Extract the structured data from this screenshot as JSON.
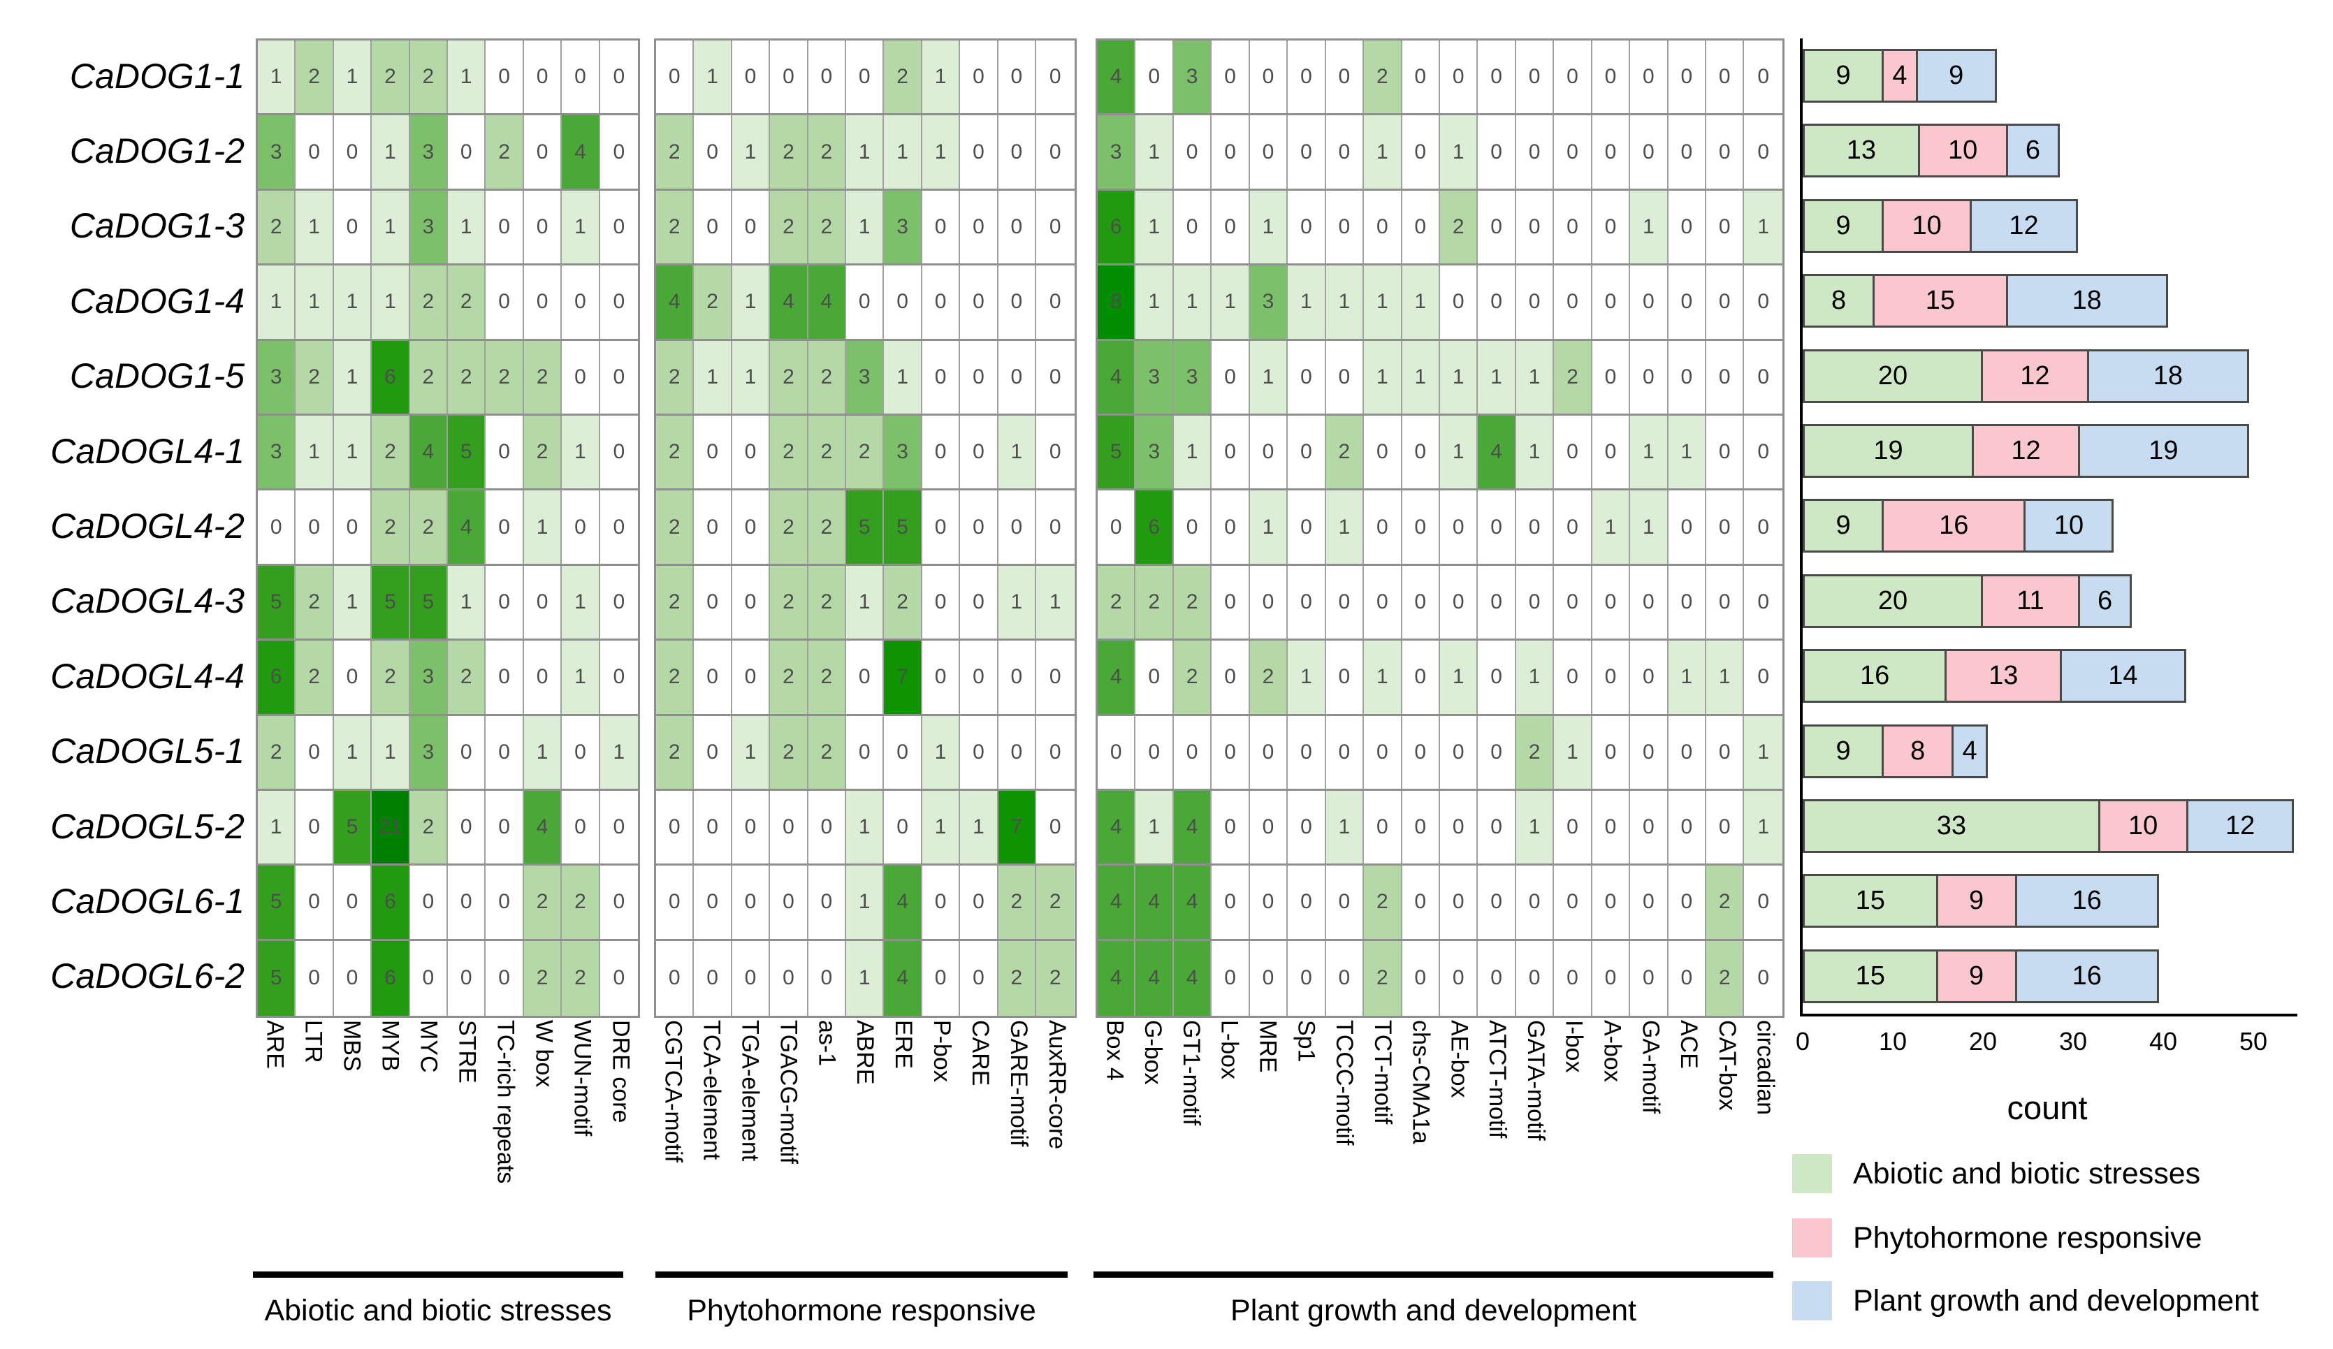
{
  "genes": [
    "CaDOG1-1",
    "CaDOG1-2",
    "CaDOG1-3",
    "CaDOG1-4",
    "CaDOG1-5",
    "CaDOGL4-1",
    "CaDOGL4-2",
    "CaDOGL4-3",
    "CaDOGL4-4",
    "CaDOGL5-1",
    "CaDOGL5-2",
    "CaDOGL6-1",
    "CaDOGL6-2"
  ],
  "heatmap": {
    "scale": {
      "zero_color": "#ffffff",
      "max_color": "#008000",
      "max_value": 21
    },
    "groups": [
      {
        "name": "Abiotic and biotic stresses",
        "columns": [
          "ARE",
          "LTR",
          "MBS",
          "MYB",
          "MYC",
          "STRE",
          "TC-rich repeats",
          "W box",
          "WUN-motif",
          "DRE core"
        ],
        "matrix": [
          [
            1,
            2,
            1,
            2,
            2,
            1,
            0,
            0,
            0,
            0
          ],
          [
            3,
            0,
            0,
            1,
            3,
            0,
            2,
            0,
            4,
            0
          ],
          [
            2,
            1,
            0,
            1,
            3,
            1,
            0,
            0,
            1,
            0
          ],
          [
            1,
            1,
            1,
            1,
            2,
            2,
            0,
            0,
            0,
            0
          ],
          [
            3,
            2,
            1,
            6,
            2,
            2,
            2,
            2,
            0,
            0
          ],
          [
            3,
            1,
            1,
            2,
            4,
            5,
            0,
            2,
            1,
            0
          ],
          [
            0,
            0,
            0,
            2,
            2,
            4,
            0,
            1,
            0,
            0
          ],
          [
            5,
            2,
            1,
            5,
            5,
            1,
            0,
            0,
            1,
            0
          ],
          [
            6,
            2,
            0,
            2,
            3,
            2,
            0,
            0,
            1,
            0
          ],
          [
            2,
            0,
            1,
            1,
            3,
            0,
            0,
            1,
            0,
            1
          ],
          [
            1,
            0,
            5,
            21,
            2,
            0,
            0,
            4,
            0,
            0
          ],
          [
            5,
            0,
            0,
            6,
            0,
            0,
            0,
            2,
            2,
            0
          ],
          [
            5,
            0,
            0,
            6,
            0,
            0,
            0,
            2,
            2,
            0
          ]
        ]
      },
      {
        "name": "Phytohormone responsive",
        "columns": [
          "CGTCA-motif",
          "TCA-element",
          "TGA-element",
          "TGACG-motif",
          "as-1",
          "ABRE",
          "ERE",
          "P-box",
          "CARE",
          "GARE-motif",
          "AuxRR-core"
        ],
        "matrix": [
          [
            0,
            1,
            0,
            0,
            0,
            0,
            2,
            1,
            0,
            0,
            0
          ],
          [
            2,
            0,
            1,
            2,
            2,
            1,
            1,
            1,
            0,
            0,
            0
          ],
          [
            2,
            0,
            0,
            2,
            2,
            1,
            3,
            0,
            0,
            0,
            0
          ],
          [
            4,
            2,
            1,
            4,
            4,
            0,
            0,
            0,
            0,
            0,
            0
          ],
          [
            2,
            1,
            1,
            2,
            2,
            3,
            1,
            0,
            0,
            0,
            0
          ],
          [
            2,
            0,
            0,
            2,
            2,
            2,
            3,
            0,
            0,
            1,
            0
          ],
          [
            2,
            0,
            0,
            2,
            2,
            5,
            5,
            0,
            0,
            0,
            0
          ],
          [
            2,
            0,
            0,
            2,
            2,
            1,
            2,
            0,
            0,
            1,
            1
          ],
          [
            2,
            0,
            0,
            2,
            2,
            0,
            7,
            0,
            0,
            0,
            0
          ],
          [
            2,
            0,
            1,
            2,
            2,
            0,
            0,
            1,
            0,
            0,
            0
          ],
          [
            0,
            0,
            0,
            0,
            0,
            1,
            0,
            1,
            1,
            7,
            0
          ],
          [
            0,
            0,
            0,
            0,
            0,
            1,
            4,
            0,
            0,
            2,
            2
          ],
          [
            0,
            0,
            0,
            0,
            0,
            1,
            4,
            0,
            0,
            2,
            2
          ]
        ]
      },
      {
        "name": "Plant growth and development",
        "columns": [
          "Box 4",
          "G-box",
          "GT1-motif",
          "L-box",
          "MRE",
          "Sp1",
          "TCCC-motif",
          "TCT-motif",
          "chs-CMA1a",
          "AE-box",
          "ATCT-motif",
          "GATA-motif",
          "I-box",
          "A-box",
          "GA-motif",
          "ACE",
          "CAT-box",
          "circadian"
        ],
        "matrix": [
          [
            4,
            0,
            3,
            0,
            0,
            0,
            0,
            2,
            0,
            0,
            0,
            0,
            0,
            0,
            0,
            0,
            0,
            0
          ],
          [
            3,
            1,
            0,
            0,
            0,
            0,
            0,
            1,
            0,
            1,
            0,
            0,
            0,
            0,
            0,
            0,
            0,
            0
          ],
          [
            6,
            1,
            0,
            0,
            1,
            0,
            0,
            0,
            0,
            2,
            0,
            0,
            0,
            0,
            1,
            0,
            0,
            1
          ],
          [
            8,
            1,
            1,
            1,
            3,
            1,
            1,
            1,
            1,
            0,
            0,
            0,
            0,
            0,
            0,
            0,
            0,
            0
          ],
          [
            4,
            3,
            3,
            0,
            1,
            0,
            0,
            1,
            1,
            1,
            1,
            1,
            2,
            0,
            0,
            0,
            0,
            0
          ],
          [
            5,
            3,
            1,
            0,
            0,
            0,
            2,
            0,
            0,
            1,
            4,
            1,
            0,
            0,
            1,
            1,
            0,
            0
          ],
          [
            0,
            6,
            0,
            0,
            1,
            0,
            1,
            0,
            0,
            0,
            0,
            0,
            0,
            1,
            1,
            0,
            0,
            0
          ],
          [
            2,
            2,
            2,
            0,
            0,
            0,
            0,
            0,
            0,
            0,
            0,
            0,
            0,
            0,
            0,
            0,
            0,
            0
          ],
          [
            4,
            0,
            2,
            0,
            2,
            1,
            0,
            1,
            0,
            1,
            0,
            1,
            0,
            0,
            0,
            1,
            1,
            0
          ],
          [
            0,
            0,
            0,
            0,
            0,
            0,
            0,
            0,
            0,
            0,
            0,
            2,
            1,
            0,
            0,
            0,
            0,
            1
          ],
          [
            4,
            1,
            4,
            0,
            0,
            0,
            1,
            0,
            0,
            0,
            0,
            1,
            0,
            0,
            0,
            0,
            0,
            1
          ],
          [
            4,
            4,
            4,
            0,
            0,
            0,
            0,
            2,
            0,
            0,
            0,
            0,
            0,
            0,
            0,
            0,
            2,
            0
          ],
          [
            4,
            4,
            4,
            0,
            0,
            0,
            0,
            2,
            0,
            0,
            0,
            0,
            0,
            0,
            0,
            0,
            2,
            0
          ]
        ]
      }
    ]
  },
  "chart_data": {
    "type": "bar",
    "orientation": "horizontal",
    "stacked": true,
    "categories": [
      "CaDOG1-1",
      "CaDOG1-2",
      "CaDOG1-3",
      "CaDOG1-4",
      "CaDOG1-5",
      "CaDOGL4-1",
      "CaDOGL4-2",
      "CaDOGL4-3",
      "CaDOGL4-4",
      "CaDOGL5-1",
      "CaDOGL5-2",
      "CaDOGL6-1",
      "CaDOGL6-2"
    ],
    "series": [
      {
        "name": "Abiotic and biotic stresses",
        "color": "#cee7c4",
        "values": [
          9,
          13,
          9,
          8,
          20,
          19,
          9,
          20,
          16,
          9,
          33,
          15,
          15
        ]
      },
      {
        "name": "Phytohormone responsive",
        "color": "#fbc7ce",
        "values": [
          4,
          10,
          10,
          15,
          12,
          12,
          16,
          11,
          13,
          8,
          10,
          9,
          9
        ]
      },
      {
        "name": "Plant growth and development",
        "color": "#c7dcf0",
        "values": [
          9,
          6,
          12,
          18,
          18,
          19,
          10,
          6,
          14,
          4,
          12,
          16,
          16
        ]
      }
    ],
    "xlabel": "count",
    "xticks": [
      0,
      10,
      20,
      30,
      40,
      50
    ],
    "xlim": [
      0,
      57
    ],
    "grid": false,
    "legend_position": "bottom-right"
  },
  "legend": {
    "items": [
      {
        "label": "Abiotic and biotic stresses",
        "color": "#cee7c4"
      },
      {
        "label": "Phytohormone responsive",
        "color": "#fbc7ce"
      },
      {
        "label": "Plant growth and development",
        "color": "#c7dcf0"
      }
    ]
  }
}
